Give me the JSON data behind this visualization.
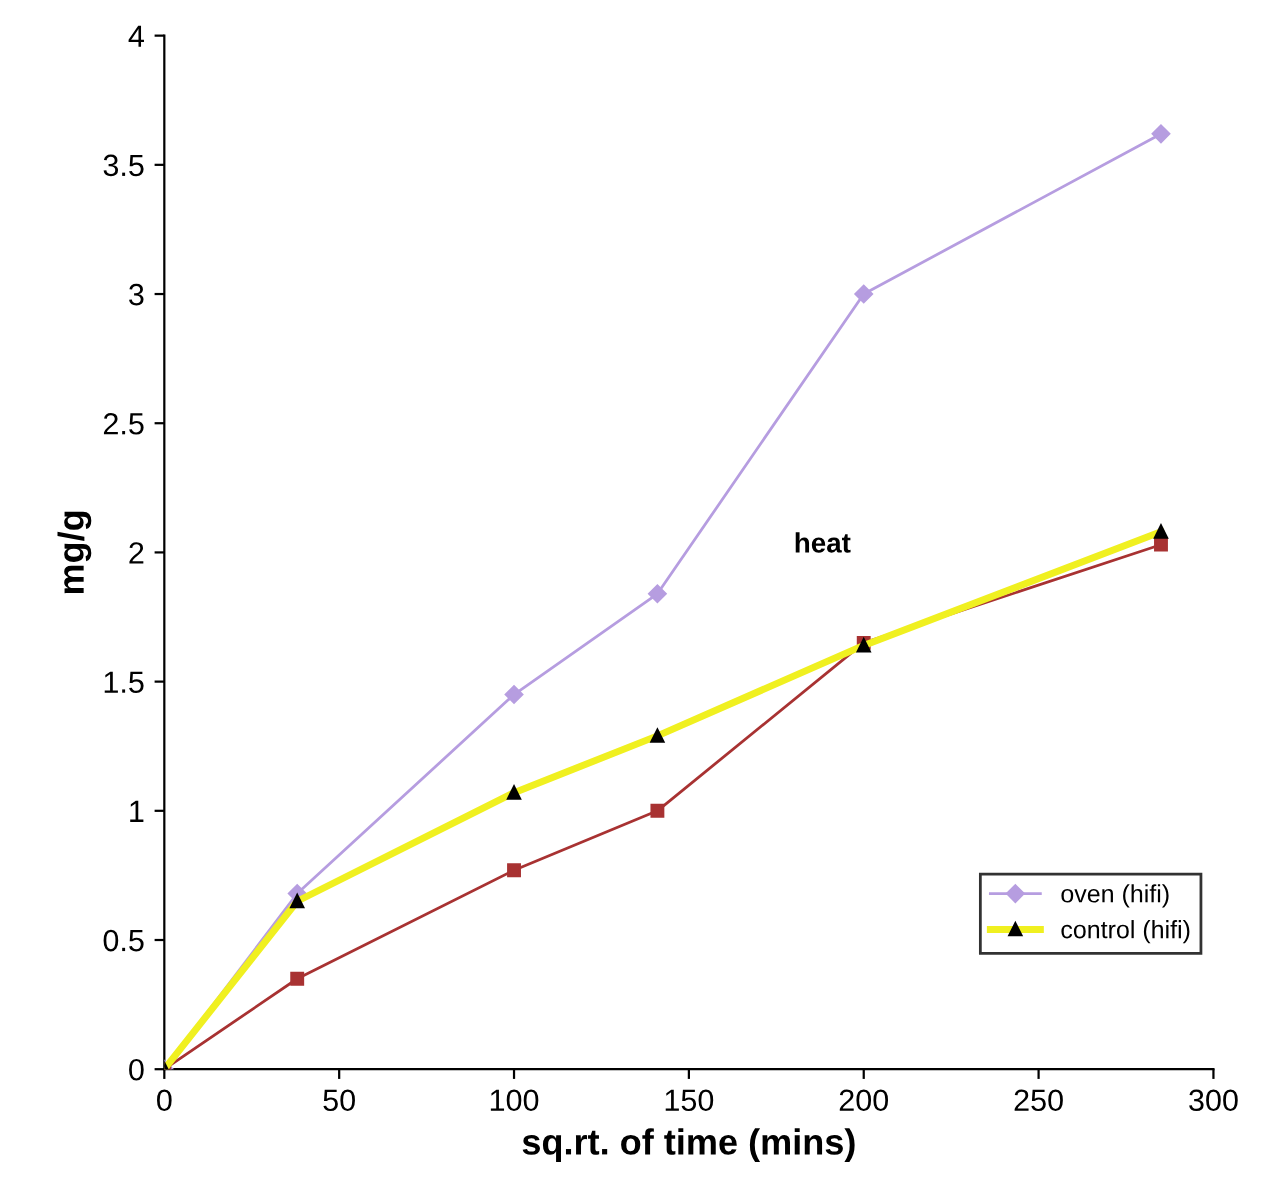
{
  "chart_data": {
    "type": "line",
    "xlabel": "sq.rt. of time (mins)",
    "ylabel": "mg/g",
    "xlim": [
      0,
      300
    ],
    "xticks": [
      0,
      50,
      100,
      150,
      200,
      250,
      300
    ],
    "ylim": [
      0,
      4
    ],
    "yticks": [
      0,
      0.5,
      1,
      1.5,
      2,
      2.5,
      3,
      3.5,
      4
    ],
    "grid": false,
    "legend": "bottom right",
    "annotations": [
      "heat"
    ],
    "x": [
      0,
      38,
      100,
      141,
      200,
      285
    ],
    "series": [
      {
        "name": "oven (hifi)",
        "color": "#b69de0",
        "marker": "diamond",
        "values": [
          0,
          0.68,
          1.45,
          1.84,
          3.0,
          3.62
        ]
      },
      {
        "color": "#a83232",
        "marker": "square",
        "values": [
          0,
          0.35,
          0.77,
          1.0,
          1.65,
          2.03
        ]
      },
      {
        "name": "control (hifi)",
        "color": "#f0f020",
        "marker": "triangle",
        "values": [
          0,
          0.65,
          1.07,
          1.29,
          1.64,
          2.08
        ]
      }
    ]
  }
}
